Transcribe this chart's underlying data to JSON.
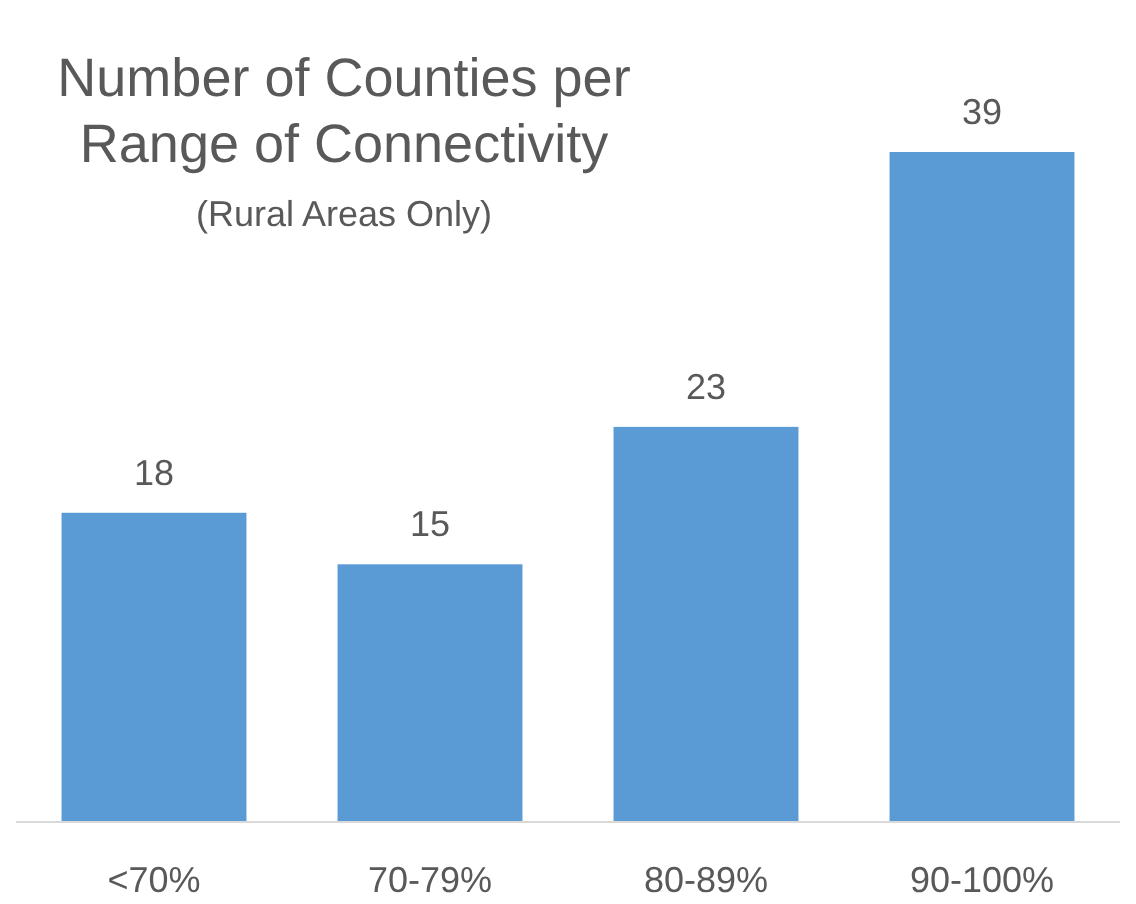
{
  "chart_data": {
    "type": "bar",
    "title": "Number of Counties per Range of Connectivity",
    "subtitle": "(Rural Areas Only)",
    "categories": [
      "<70%",
      "70-79%",
      "80-89%",
      "90-100%"
    ],
    "values": [
      18,
      15,
      23,
      39
    ],
    "color": "#5b9bd5",
    "data_labels": true
  }
}
